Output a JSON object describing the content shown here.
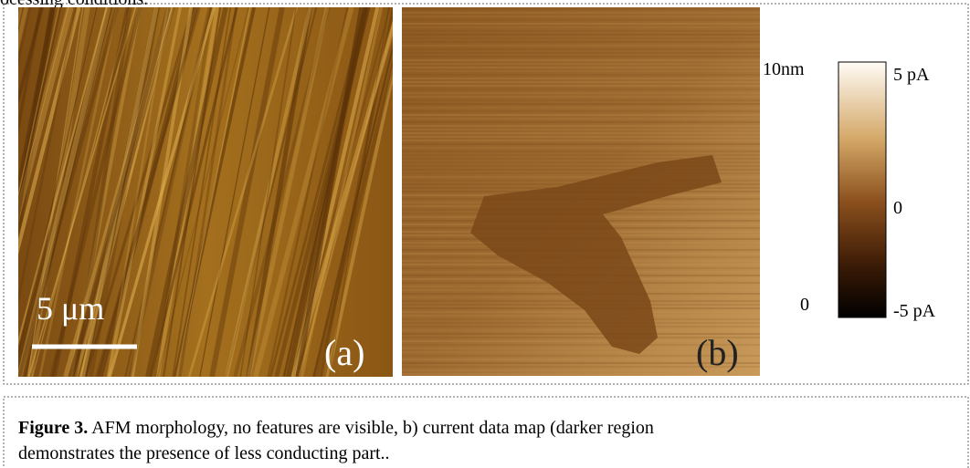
{
  "header": {
    "text": "ocessing conditions."
  },
  "panel_a": {
    "scale_bar": "5 μm",
    "label": "(a)"
  },
  "panel_b": {
    "label": "(b)"
  },
  "height_scale": {
    "top": "10nm",
    "bottom": "0"
  },
  "colorbar": {
    "top": "5 pA",
    "middle": "0",
    "bottom": "-5 pA"
  },
  "caption": {
    "label": "Figure 3.",
    "text": " AFM morphology, no features are visible, b) current data map (darker region demonstrates the presence of less conducting part.."
  }
}
